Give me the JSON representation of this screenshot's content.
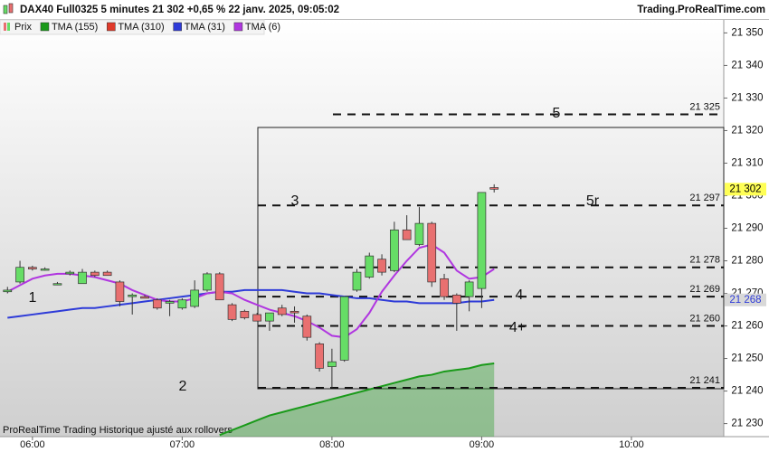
{
  "chart_data": {
    "type": "candlestick",
    "title": "DAX40 Full0325 5 minutes 21 302 +0,65 % 22 janv. 2025, 09:05:02",
    "source": "Trading.ProRealTime.com",
    "footnote": "ProRealTime Trading  Historique ajusté aux rollovers",
    "price_name": "Prix",
    "up_color": "#66dd66",
    "down_color": "#e87070",
    "x": [
      "05:50",
      "05:55",
      "06:00",
      "06:05",
      "06:10",
      "06:15",
      "06:20",
      "06:25",
      "06:30",
      "06:35",
      "06:40",
      "06:45",
      "06:50",
      "06:55",
      "07:00",
      "07:05",
      "07:10",
      "07:15",
      "07:20",
      "07:25",
      "07:30",
      "07:35",
      "07:40",
      "07:45",
      "07:50",
      "07:55",
      "08:00",
      "08:05",
      "08:10",
      "08:15",
      "08:20",
      "08:25",
      "08:30",
      "08:35",
      "08:40",
      "08:45",
      "08:50",
      "08:55",
      "09:00",
      "09:05"
    ],
    "open": [
      21270.5,
      21273.5,
      21278,
      21277.5,
      21273,
      21276,
      21273,
      21276.5,
      21276.5,
      21273.5,
      21269,
      21269,
      21268,
      21267,
      21265.5,
      21266,
      21271,
      21276,
      21266.5,
      21264.5,
      21263.5,
      21261.5,
      21265.5,
      21264.5,
      21263,
      21254.5,
      21247.5,
      21249.5,
      21271,
      21275,
      21280.5,
      21277,
      21289.5,
      21285,
      21291.5,
      21274.5,
      21269.5,
      21269,
      21271.5,
      21302.5
    ],
    "high": [
      21272,
      21280,
      21278.5,
      21278,
      21273.5,
      21277,
      21277.5,
      21277,
      21277,
      21274,
      21270,
      21269.5,
      21268.5,
      21268,
      21268.5,
      21274,
      21276.5,
      21276.5,
      21267,
      21265,
      21264,
      21264,
      21266.5,
      21266,
      21263.5,
      21255,
      21253,
      21269,
      21277.5,
      21282.5,
      21282,
      21292,
      21294,
      21296.5,
      21292,
      21276,
      21270,
      21274,
      21301,
      21303.5
    ],
    "low": [
      21270,
      21273,
      21277,
      21277,
      21272.5,
      21275.5,
      21273,
      21275,
      21275.5,
      21266,
      21263.5,
      21268.5,
      21265,
      21263,
      21265,
      21265.5,
      21270.5,
      21268,
      21261.5,
      21262,
      21261.5,
      21258.5,
      21263,
      21261,
      21255.5,
      21246,
      21241,
      21249,
      21270.5,
      21274.5,
      21275.5,
      21276.5,
      21286.5,
      21284.5,
      21272,
      21268,
      21258.5,
      21264.5,
      21265.5,
      21301
    ],
    "close": [
      21271,
      21278,
      21277.5,
      21277.5,
      21273,
      21276.5,
      21276.5,
      21275.5,
      21275.5,
      21267.5,
      21269.5,
      21268.5,
      21265.5,
      21267.5,
      21268,
      21271,
      21276,
      21268,
      21262,
      21262.5,
      21261.5,
      21264,
      21263.5,
      21264,
      21256.5,
      21247,
      21249,
      21269,
      21276.5,
      21281.5,
      21276.5,
      21289.5,
      21286.5,
      21291.5,
      21273.5,
      21269,
      21267,
      21273.5,
      21301,
      21302
    ],
    "series": [
      {
        "name": "TMA (155)",
        "color": "#1a9a1a",
        "values": [
          null,
          null,
          null,
          null,
          null,
          null,
          null,
          null,
          null,
          null,
          null,
          null,
          null,
          null,
          null,
          null,
          null,
          21226.5,
          21228,
          21229.5,
          21231,
          21232.5,
          21233.5,
          21234.5,
          21235.5,
          21236.5,
          21237.5,
          21238.5,
          21239.5,
          21240.5,
          21241.5,
          21242.5,
          21243.5,
          21244.5,
          21245,
          21246,
          21246.5,
          21247,
          21248,
          21248.5
        ]
      },
      {
        "name": "TMA (310)",
        "color": "#e03a2a",
        "values": [
          null,
          null,
          null,
          null,
          null,
          null,
          null,
          null,
          null,
          null,
          null,
          null,
          null,
          null,
          null,
          null,
          null,
          null,
          null,
          null,
          null,
          null,
          null,
          null,
          null,
          null,
          null,
          null,
          null,
          null,
          null,
          null,
          null,
          null,
          null,
          null,
          null,
          null,
          null,
          null
        ]
      },
      {
        "name": "TMA (31)",
        "color": "#2e3bd8",
        "values": [
          21262.5,
          21263,
          21263.5,
          21264,
          21264.5,
          21265,
          21265.5,
          21265.5,
          21266,
          21266.5,
          21267,
          21267.5,
          21268,
          21268.5,
          21269,
          21269.5,
          21270,
          21270.5,
          21270.5,
          21271,
          21271,
          21271,
          21271,
          21270.5,
          21270,
          21270,
          21269.5,
          21269,
          21268.5,
          21268.5,
          21268,
          21267.5,
          21267.5,
          21267,
          21267,
          21267,
          21267,
          21267.5,
          21267.5,
          21268
        ]
      },
      {
        "name": "TMA (6)",
        "color": "#b036e0",
        "values": [
          21270.5,
          21272.5,
          21274.5,
          21275.5,
          21276,
          21276,
          21275.5,
          21275,
          21274,
          21273,
          21271,
          21269.5,
          21268,
          21267.5,
          21267.5,
          21268.5,
          21270,
          21270.5,
          21270,
          21268,
          21266.5,
          21265,
          21264,
          21263,
          21261.5,
          21259.5,
          21257,
          21256.5,
          21259,
          21264,
          21270.5,
          21275.5,
          21280,
          21284,
          21285,
          21282.5,
          21277,
          21274.5,
          21275,
          21277.5
        ]
      }
    ],
    "ylim": [
      21226,
      21354
    ],
    "yticks": [
      {
        "value": 21230,
        "label": "21 230"
      },
      {
        "value": 21240,
        "label": "21 240"
      },
      {
        "value": 21250,
        "label": "21 250"
      },
      {
        "value": 21260,
        "label": "21 260"
      },
      {
        "value": 21270,
        "label": "21 270"
      },
      {
        "value": 21280,
        "label": "21 280"
      },
      {
        "value": 21290,
        "label": "21 290"
      },
      {
        "value": 21300,
        "label": "21 300"
      },
      {
        "value": 21310,
        "label": "21 310"
      },
      {
        "value": 21320,
        "label": "21 320"
      },
      {
        "value": 21330,
        "label": "21 330"
      },
      {
        "value": 21340,
        "label": "21 340"
      },
      {
        "value": 21350,
        "label": "21 350"
      }
    ],
    "xlim": [
      "05:47",
      "10:37"
    ],
    "xticks": [
      "06:00",
      "07:00",
      "08:00",
      "09:00",
      "10:00"
    ],
    "levels": {
      "values": [
        21325,
        21297,
        21278,
        21269,
        21260,
        21241
      ],
      "value_labels": [
        "21 325",
        "21 297",
        "21 278",
        "21 269",
        "21 260",
        "21 241"
      ]
    },
    "annotations": [
      "1",
      "2",
      "3",
      "4",
      "4+",
      "5",
      "5r"
    ],
    "last_price": {
      "value": 21302,
      "label": "21 302"
    },
    "tma_price": {
      "value": 21268,
      "label": "21 268"
    }
  }
}
